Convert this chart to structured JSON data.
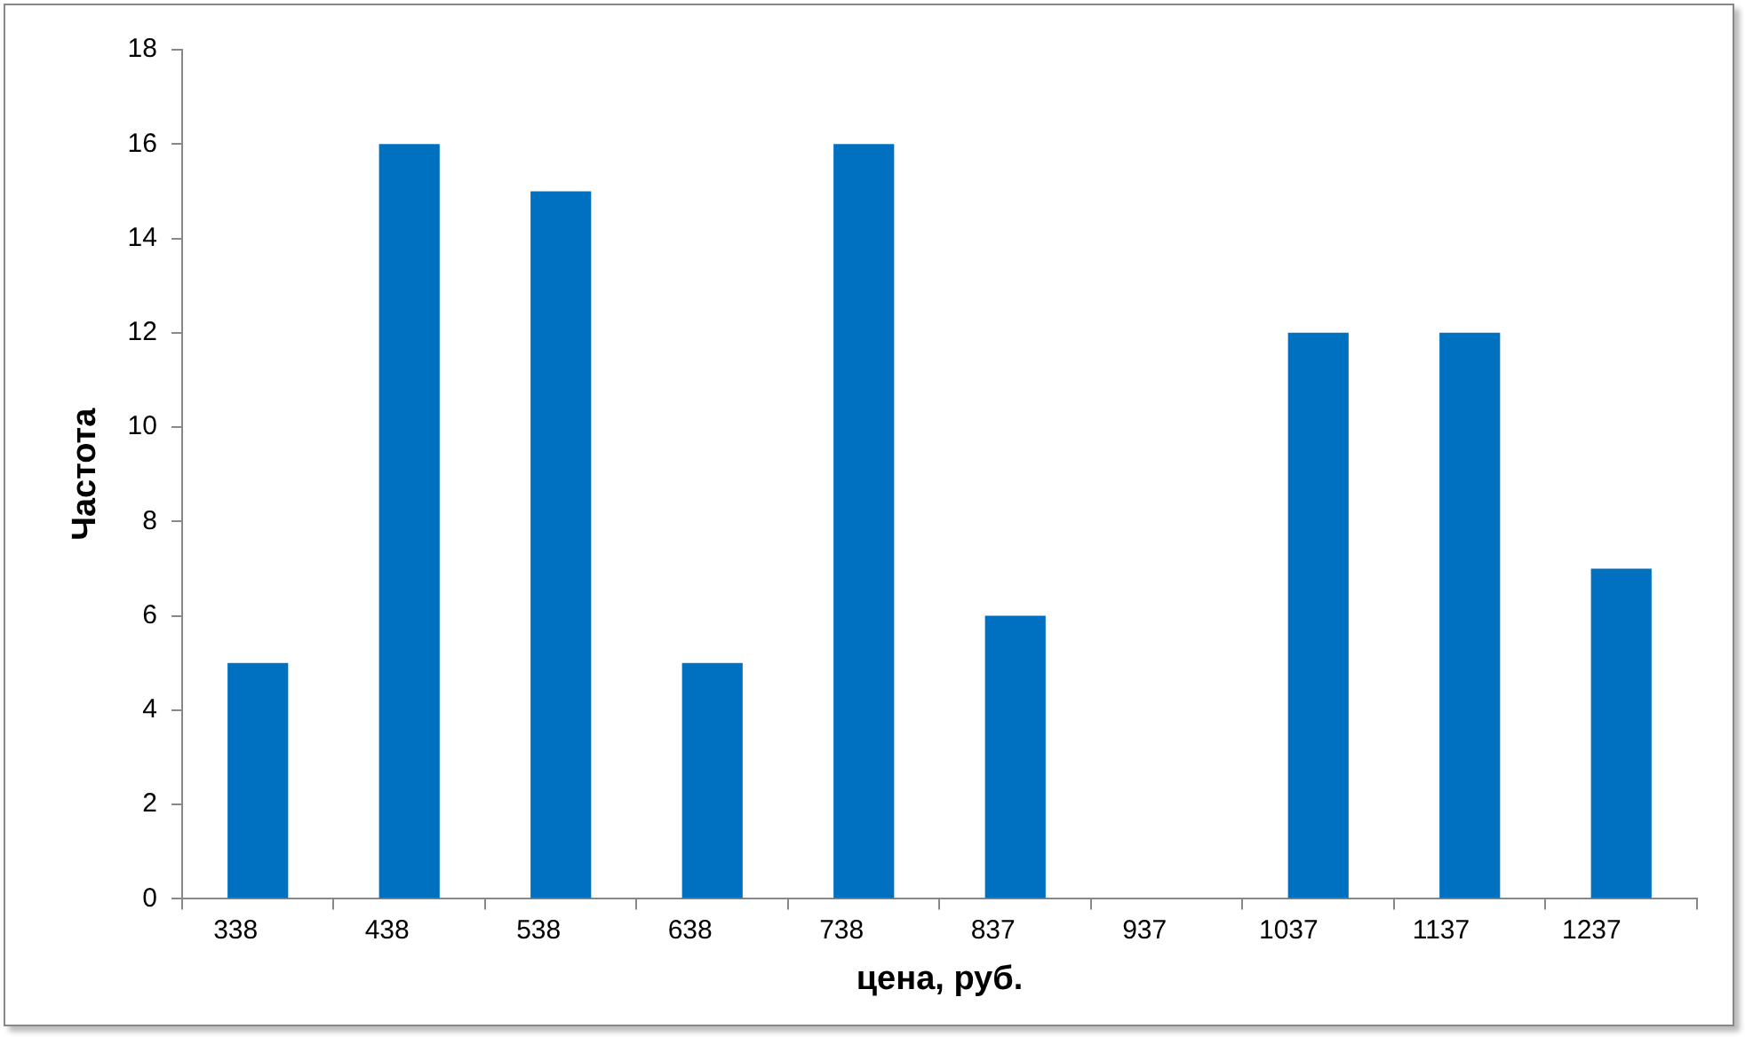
{
  "chart_data": {
    "type": "bar",
    "xlabel": "цена, руб.",
    "ylabel": "Частота",
    "categories": [
      "338",
      "438",
      "538",
      "638",
      "738",
      "837",
      "937",
      "1037",
      "1137",
      "1237"
    ],
    "values": [
      5,
      16,
      15,
      5,
      16,
      6,
      0,
      12,
      12,
      7
    ],
    "color": "#0070c0",
    "ylim": [
      0,
      18
    ],
    "yticks": [
      0,
      2,
      4,
      6,
      8,
      10,
      12,
      14,
      16,
      18
    ],
    "grid": false,
    "legend": false
  }
}
